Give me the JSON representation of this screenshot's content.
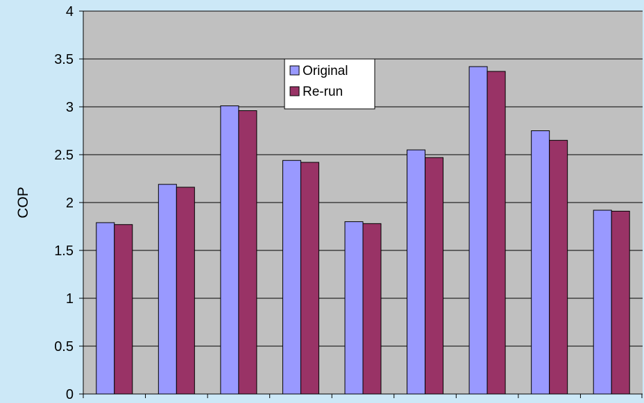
{
  "chart_data": {
    "type": "bar",
    "ylabel": "COP",
    "ylim": [
      0,
      4
    ],
    "yticks": [
      0,
      0.5,
      1,
      1.5,
      2,
      2.5,
      3,
      3.5,
      4
    ],
    "grid": true,
    "legend_position": "top-center",
    "series": [
      {
        "name": "Original",
        "color": "#9999ff",
        "values": [
          1.79,
          2.19,
          3.01,
          2.44,
          1.8,
          2.55,
          3.42,
          2.75,
          1.92
        ]
      },
      {
        "name": "Re-run",
        "color": "#993366",
        "values": [
          1.77,
          2.16,
          2.96,
          2.42,
          1.78,
          2.47,
          3.37,
          2.65,
          1.91
        ]
      }
    ]
  },
  "colors": {
    "page_background": "#cce8f7",
    "plot_background": "#c0c0c0"
  }
}
